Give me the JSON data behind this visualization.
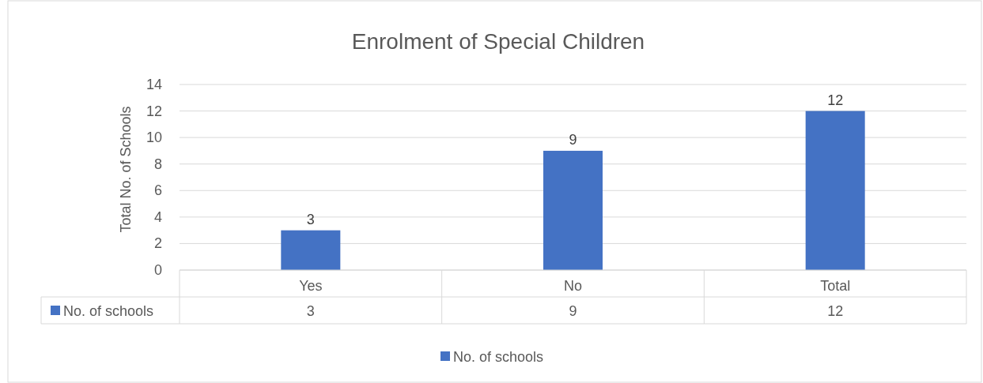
{
  "chart_data": {
    "type": "bar",
    "title": "Enrolment of Special Children",
    "ylabel": "Total No. of Schools",
    "categories": [
      "Yes",
      "No",
      "Total"
    ],
    "series": [
      {
        "name": "No. of schools",
        "color": "#4472c4",
        "values": [
          3,
          9,
          12
        ]
      }
    ],
    "annotations": [
      {
        "text": "3",
        "x": "Yes",
        "y": 3
      },
      {
        "text": "9",
        "x": "No",
        "y": 9
      },
      {
        "text": "12",
        "x": "Total",
        "y": 12
      }
    ],
    "ylim": [
      0,
      14
    ],
    "yticks": [
      0,
      2,
      4,
      6,
      8,
      10,
      12,
      14
    ],
    "grid": "y",
    "data_labels": true,
    "legend": "bottom"
  }
}
